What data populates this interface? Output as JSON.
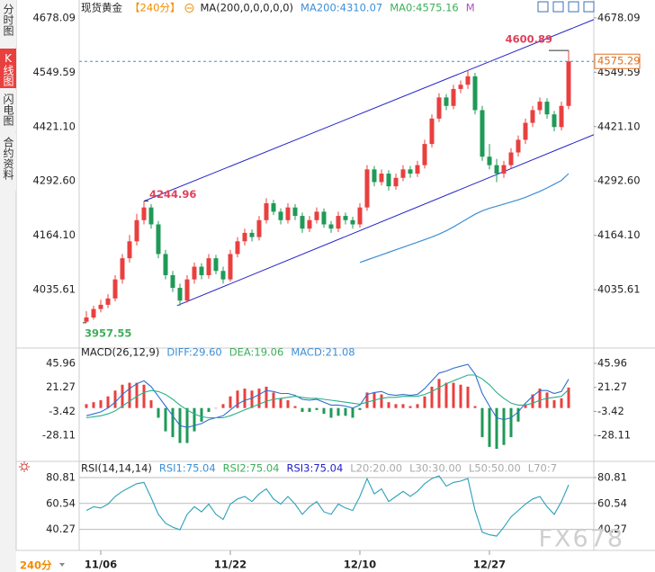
{
  "sidebar": {
    "tabs": [
      "分时图",
      "K线图",
      "闪电图",
      "合约资料"
    ],
    "active": 1,
    "period": "240分"
  },
  "watermark": "FX678",
  "chart_data": [
    {
      "type": "candlestick",
      "header": [
        {
          "text": "现货黄金",
          "color": "#222222"
        },
        {
          "text": "【240分】",
          "color": "#f08c00"
        },
        {
          "text": "MA(200,0,0,0,0,0)",
          "color": "#222222"
        },
        {
          "text": "MA200:4310.07",
          "color": "#3d8fd6"
        },
        {
          "text": "MA0:4575.16",
          "color": "#3fae5b"
        },
        {
          "text": "M",
          "color": "#b04fc0"
        }
      ],
      "xlim": [
        -1,
        70.5
      ],
      "xticks": [
        {
          "value": 2,
          "label": "11/06"
        },
        {
          "value": 20,
          "label": "11/22"
        },
        {
          "value": 38,
          "label": "12/10"
        },
        {
          "value": 56,
          "label": "12/27"
        }
      ],
      "ylim": [
        3902,
        4682
      ],
      "yticks": [
        4678.09,
        4549.59,
        {
          "value": 4421.1,
          "label": "4421.10"
        },
        {
          "value": 4292.6,
          "label": "4292.60"
        },
        {
          "value": 4164.1,
          "label": "4164.10"
        },
        4035.61
      ],
      "up_color": "#e8403f",
      "down_color": "#1f9a57",
      "ohlc": [
        [
          3960,
          3985,
          3957.55,
          3970
        ],
        [
          3970,
          3998,
          3965,
          3990
        ],
        [
          3990,
          4012,
          3982,
          4000
        ],
        [
          4000,
          4025,
          3992,
          4015
        ],
        [
          4015,
          4070,
          4008,
          4060
        ],
        [
          4060,
          4120,
          4050,
          4110
        ],
        [
          4110,
          4165,
          4100,
          4150
        ],
        [
          4150,
          4215,
          4140,
          4200
        ],
        [
          4200,
          4244.96,
          4190,
          4230
        ],
        [
          4230,
          4238,
          4180,
          4190
        ],
        [
          4190,
          4198,
          4110,
          4120
        ],
        [
          4120,
          4130,
          4060,
          4070
        ],
        [
          4070,
          4080,
          4030,
          4040
        ],
        [
          4040,
          4050,
          3998,
          4010
        ],
        [
          4010,
          4070,
          4005,
          4060
        ],
        [
          4060,
          4100,
          4050,
          4090
        ],
        [
          4090,
          4098,
          4060,
          4070
        ],
        [
          4070,
          4120,
          4062,
          4110
        ],
        [
          4110,
          4118,
          4072,
          4080
        ],
        [
          4080,
          4090,
          4050,
          4060
        ],
        [
          4060,
          4130,
          4055,
          4120
        ],
        [
          4120,
          4160,
          4112,
          4150
        ],
        [
          4150,
          4180,
          4140,
          4170
        ],
        [
          4170,
          4178,
          4150,
          4160
        ],
        [
          4160,
          4210,
          4152,
          4200
        ],
        [
          4200,
          4252,
          4192,
          4240
        ],
        [
          4240,
          4248,
          4212,
          4220
        ],
        [
          4220,
          4228,
          4190,
          4200
        ],
        [
          4200,
          4240,
          4192,
          4230
        ],
        [
          4230,
          4238,
          4200,
          4210
        ],
        [
          4210,
          4218,
          4170,
          4180
        ],
        [
          4180,
          4210,
          4172,
          4200
        ],
        [
          4200,
          4230,
          4192,
          4220
        ],
        [
          4220,
          4228,
          4182,
          4190
        ],
        [
          4190,
          4198,
          4170,
          4180
        ],
        [
          4180,
          4220,
          4172,
          4210
        ],
        [
          4210,
          4218,
          4190,
          4200
        ],
        [
          4200,
          4208,
          4180,
          4190
        ],
        [
          4190,
          4240,
          4182,
          4230
        ],
        [
          4230,
          4330,
          4222,
          4320
        ],
        [
          4320,
          4328,
          4280,
          4290
        ],
        [
          4290,
          4320,
          4282,
          4310
        ],
        [
          4310,
          4318,
          4270,
          4280
        ],
        [
          4280,
          4310,
          4272,
          4300
        ],
        [
          4300,
          4330,
          4292,
          4320
        ],
        [
          4320,
          4328,
          4300,
          4310
        ],
        [
          4310,
          4340,
          4302,
          4330
        ],
        [
          4330,
          4390,
          4322,
          4380
        ],
        [
          4380,
          4450,
          4372,
          4440
        ],
        [
          4440,
          4500,
          4432,
          4490
        ],
        [
          4490,
          4498,
          4460,
          4470
        ],
        [
          4470,
          4520,
          4462,
          4510
        ],
        [
          4510,
          4530,
          4500,
          4520
        ],
        [
          4520,
          4555,
          4510,
          4540
        ],
        [
          4540,
          4548,
          4450,
          4460
        ],
        [
          4460,
          4470,
          4340,
          4350
        ],
        [
          4350,
          4380,
          4320,
          4330
        ],
        [
          4330,
          4345,
          4290,
          4310
        ],
        [
          4310,
          4340,
          4300,
          4330
        ],
        [
          4330,
          4370,
          4322,
          4360
        ],
        [
          4360,
          4400,
          4350,
          4390
        ],
        [
          4390,
          4440,
          4380,
          4430
        ],
        [
          4430,
          4470,
          4420,
          4460
        ],
        [
          4460,
          4490,
          4450,
          4480
        ],
        [
          4480,
          4488,
          4440,
          4450
        ],
        [
          4450,
          4458,
          4410,
          4420
        ],
        [
          4420,
          4480,
          4412,
          4470
        ],
        [
          4470,
          4600.89,
          4462,
          4575.29
        ]
      ],
      "ma": {
        "color": "#3d8fd6",
        "values": [
          null,
          null,
          null,
          null,
          null,
          null,
          null,
          null,
          null,
          null,
          null,
          null,
          null,
          null,
          null,
          null,
          null,
          null,
          null,
          null,
          null,
          null,
          null,
          null,
          null,
          null,
          null,
          null,
          null,
          null,
          null,
          null,
          null,
          null,
          null,
          null,
          null,
          null,
          4100,
          4106,
          4112,
          4118,
          4124,
          4130,
          4136,
          4142,
          4148,
          4154,
          4160,
          4167,
          4175,
          4184,
          4194,
          4204,
          4214,
          4222,
          4228,
          4233,
          4238,
          4243,
          4248,
          4254,
          4261,
          4268,
          4276,
          4285,
          4294,
          4310.07
        ]
      },
      "trendlines": [
        {
          "x": [
            8,
            70.5
          ],
          "y": [
            4245,
            4674
          ],
          "color": "#2323c8"
        },
        {
          "x": [
            12.6,
            70.5
          ],
          "y": [
            3998,
            4402
          ],
          "color": "#2323c8"
        }
      ],
      "price_line": {
        "color": "#3d8fd6",
        "dashed": true,
        "label_color": "#e07020"
      },
      "extremes": [
        {
          "index": 67,
          "of": "high",
          "color": "#e0405a",
          "side": "left"
        },
        {
          "index": 8,
          "of": "high",
          "color": "#e0405a",
          "side": "right"
        },
        {
          "index": 0,
          "of": "low",
          "color": "#3fae5b",
          "side": "below"
        }
      ]
    },
    {
      "type": "macd",
      "header": [
        {
          "text": "MACD(26,12,9)",
          "color": "#222222"
        },
        {
          "text": "DIFF:29.60",
          "color": "#3d8fd6"
        },
        {
          "text": "DEA:19.06",
          "color": "#3fae5b"
        },
        {
          "text": "MACD:21.08",
          "color": "#3d8fd6"
        }
      ],
      "ylim": [
        -47.5,
        57.1
      ],
      "yticks": [
        45.96,
        21.27,
        -3.42,
        -28.11
      ],
      "series": [
        {
          "color": "#2f6fd0",
          "values": [
            -8,
            -6,
            -4,
            0,
            6,
            14,
            20,
            25,
            28,
            22,
            12,
            2,
            -8,
            -18,
            -20,
            -18,
            -16,
            -12,
            -10,
            -8,
            -2,
            4,
            8,
            10,
            14,
            18,
            17,
            15,
            15,
            13,
            9,
            8,
            9,
            6,
            3,
            3,
            2,
            0,
            3,
            14,
            16,
            17,
            14,
            13,
            14,
            13,
            14,
            20,
            28,
            36,
            38,
            41,
            43,
            45,
            35,
            15,
            2,
            -10,
            -12,
            -10,
            -4,
            5,
            12,
            18,
            18,
            15,
            17,
            29.6
          ]
        },
        {
          "color": "#26b08a",
          "values": [
            -10,
            -9,
            -8,
            -6,
            -3,
            2,
            7,
            12,
            16,
            18,
            17,
            14,
            9,
            3,
            -2,
            -6,
            -9,
            -10,
            -10,
            -10,
            -8,
            -5,
            -2,
            1,
            4,
            7,
            9,
            10,
            11,
            12,
            11,
            10,
            10,
            9,
            8,
            7,
            6,
            5,
            4,
            6,
            8,
            10,
            11,
            11,
            12,
            12,
            12,
            14,
            17,
            21,
            25,
            28,
            31,
            34,
            34,
            30,
            24,
            16,
            10,
            5,
            3,
            3,
            5,
            8,
            10,
            11,
            12,
            19.06
          ]
        }
      ],
      "histogram": {
        "up_color": "#e8403f",
        "down_color": "#1f9a57",
        "values": [
          4,
          6,
          8,
          12,
          18,
          24,
          26,
          26,
          24,
          8,
          -10,
          -24,
          -30,
          -36,
          -36,
          -24,
          -14,
          -4,
          0,
          4,
          12,
          18,
          20,
          18,
          20,
          22,
          16,
          10,
          8,
          2,
          -4,
          -4,
          -2,
          -6,
          -10,
          -8,
          -8,
          -10,
          -2,
          16,
          16,
          14,
          6,
          4,
          4,
          2,
          4,
          12,
          22,
          30,
          26,
          26,
          24,
          22,
          2,
          -30,
          -40,
          -42,
          -38,
          -30,
          -14,
          4,
          14,
          20,
          16,
          8,
          10,
          21.08
        ]
      }
    },
    {
      "type": "rsi",
      "header": [
        {
          "text": "RSI(14,14,14)",
          "color": "#222222"
        },
        {
          "text": "RSI1:75.04",
          "color": "#3d8fd6"
        },
        {
          "text": "RSI2:75.04",
          "color": "#3fae5b"
        },
        {
          "text": "RSI3:75.04",
          "color": "#2323c8"
        },
        {
          "text": "L20:20.00",
          "color": "#aaaaaa"
        },
        {
          "text": "L30:30.00",
          "color": "#aaaaaa"
        },
        {
          "text": "L50:50.00",
          "color": "#aaaaaa"
        },
        {
          "text": "L70:7",
          "color": "#aaaaaa"
        }
      ],
      "ylim": [
        26.6,
        87.1
      ],
      "yticks": [
        80.81,
        60.54,
        40.27
      ],
      "grid": true,
      "series": [
        {
          "color": "#2aa0b8",
          "values": [
            55,
            58,
            57,
            60,
            66,
            70,
            73,
            76,
            77,
            65,
            52,
            45,
            42,
            40,
            52,
            58,
            54,
            60,
            52,
            48,
            60,
            64,
            66,
            62,
            68,
            72,
            64,
            60,
            66,
            60,
            52,
            58,
            62,
            54,
            52,
            60,
            57,
            55,
            66,
            80,
            68,
            72,
            62,
            66,
            70,
            66,
            70,
            76,
            80,
            82,
            74,
            77,
            78,
            80,
            55,
            38,
            36,
            35,
            42,
            50,
            55,
            60,
            64,
            66,
            58,
            52,
            62,
            75.04
          ]
        }
      ]
    }
  ]
}
